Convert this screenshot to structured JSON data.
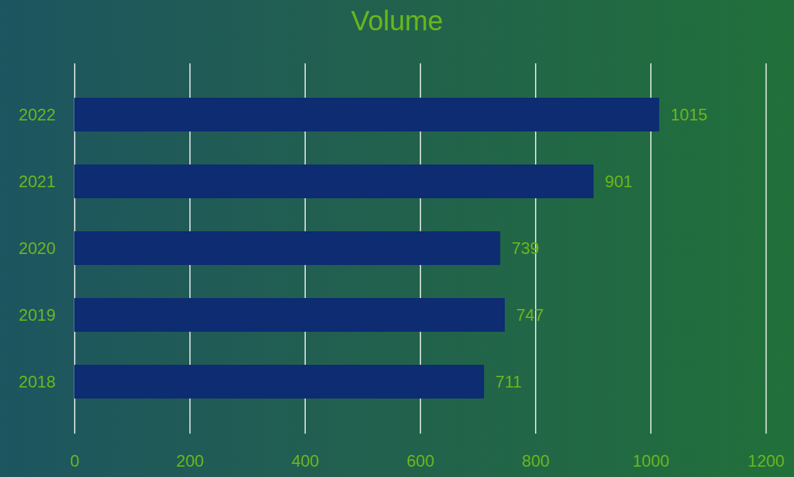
{
  "chart_data": {
    "type": "bar",
    "title": "Volume",
    "categories": [
      "2018",
      "2019",
      "2020",
      "2021",
      "2022"
    ],
    "values": [
      711,
      747,
      739,
      901,
      1015
    ],
    "color": "#0d2c72",
    "orientation": "horizontal",
    "xlim": [
      0,
      1200
    ],
    "xticks": [
      0,
      200,
      400,
      600,
      800,
      1000,
      1200
    ],
    "grid": true,
    "data_labels": true
  }
}
